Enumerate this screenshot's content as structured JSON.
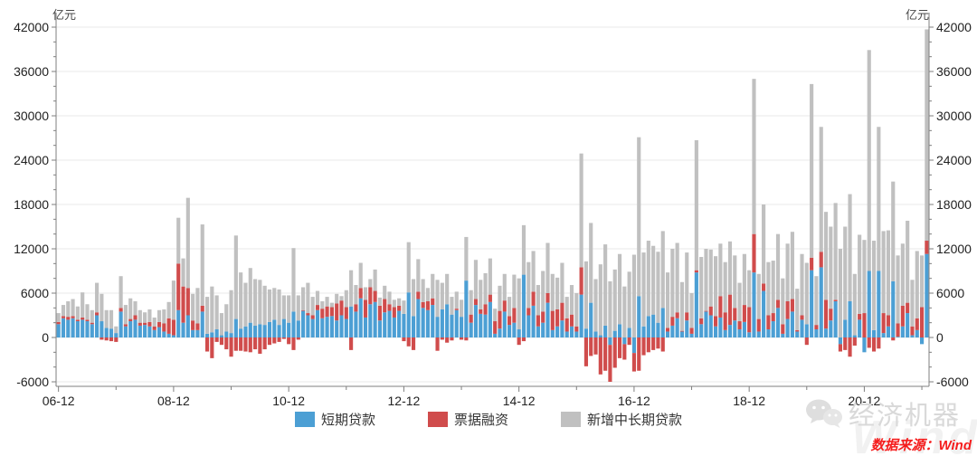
{
  "footer": {
    "source": "数据来源：Wind"
  },
  "watermark": {
    "wechat_account": "经济机器",
    "brand": "Wind"
  },
  "chart_data": {
    "type": "bar",
    "stacked": true,
    "title": "",
    "xlabel": "",
    "ylabel": "亿元",
    "x_start": "2006-12",
    "x_end": "2022-01",
    "frequency": "monthly",
    "x_tick_labels": [
      "06-12",
      "08-12",
      "10-12",
      "12-12",
      "14-12",
      "16-12",
      "18-12",
      "20-12"
    ],
    "x_major_tick_every_months": 24,
    "x_minor_tick_every_months": 12,
    "ylim": [
      -6000,
      42000
    ],
    "y_major_step": 6000,
    "y_minor_step": 2000,
    "grid": true,
    "legend_position": "bottom",
    "axis_color": "#7f7f7f",
    "grid_color": "#e9e9e9",
    "series": [
      {
        "name": "短期贷款",
        "color": "#4c9fd4",
        "values": [
          1800,
          2600,
          2400,
          2600,
          2200,
          2400,
          2200,
          1800,
          3000,
          2200,
          1300,
          1200,
          600,
          3500,
          1500,
          2200,
          2400,
          1600,
          1700,
          1500,
          1000,
          1400,
          800,
          500,
          300,
          3700,
          2000,
          3000,
          1000,
          1000,
          3500,
          500,
          700,
          1100,
          300,
          800,
          600,
          2500,
          1200,
          1500,
          2000,
          1600,
          1800,
          1700,
          2100,
          2400,
          1700,
          2500,
          2000,
          3500,
          2300,
          3600,
          3000,
          2500,
          3700,
          2600,
          2800,
          2900,
          2300,
          3000,
          2500,
          4200,
          3500,
          5300,
          2700,
          4500,
          4800,
          2300,
          3400,
          3600,
          2700,
          3600,
          3200,
          6100,
          2900,
          5200,
          4000,
          3700,
          4400,
          2800,
          3800,
          4500,
          3100,
          3700,
          2800,
          7700,
          2000,
          4400,
          3200,
          3100,
          4800,
          500,
          1200,
          3500,
          1700,
          2000,
          1100,
          8500,
          3000,
          4300,
          1500,
          2000,
          4700,
          1000,
          1500,
          2300,
          800,
          1500,
          800,
          5800,
          1200,
          4700,
          800,
          300,
          1600,
          -1000,
          900,
          1800,
          -900,
          1300,
          -2100,
          5600,
          1500,
          2900,
          3100,
          2000,
          4000,
          800,
          1600,
          2600,
          800,
          2300,
          500,
          8800,
          1800,
          3500,
          3000,
          1500,
          2700,
          1000,
          1700,
          2300,
          1100,
          2100,
          700,
          8800,
          800,
          6300,
          1100,
          2200,
          4000,
          500,
          2500,
          3500,
          800,
          2400,
          1800,
          9100,
          1100,
          9500,
          1200,
          2300,
          4900,
          -900,
          2400,
          4900,
          300,
          2400,
          -2000,
          9000,
          1000,
          9000,
          600,
          1500,
          7600,
          100,
          1500,
          3300,
          300,
          1000,
          -900,
          11300
        ]
      },
      {
        "name": "票据融资",
        "color": "#d04c4c",
        "values": [
          300,
          300,
          400,
          300,
          200,
          300,
          200,
          200,
          400,
          -300,
          -400,
          -500,
          -600,
          500,
          300,
          300,
          600,
          400,
          300,
          600,
          500,
          700,
          1100,
          2100,
          2100,
          6300,
          4900,
          3700,
          1300,
          900,
          800,
          -1900,
          -2800,
          -600,
          -1000,
          -1600,
          -2600,
          -1800,
          -1800,
          -1900,
          -2000,
          -1600,
          -2200,
          -1600,
          -1000,
          -800,
          -600,
          -200,
          -900,
          -1700,
          -300,
          100,
          300,
          500,
          700,
          1300,
          1400,
          1200,
          2300,
          2000,
          1600,
          -1700,
          1000,
          1400,
          2400,
          2300,
          1500,
          2000,
          1800,
          900,
          1400,
          700,
          -500,
          -1200,
          -1700,
          1000,
          800,
          1200,
          900,
          -1800,
          -300,
          -700,
          -400,
          200,
          -300,
          -400,
          1100,
          800,
          600,
          1400,
          1000,
          1700,
          2400,
          1500,
          1200,
          2000,
          -1000,
          -500,
          1000,
          1900,
          1500,
          1500,
          1300,
          2600,
          2300,
          2400,
          1800,
          1600,
          700,
          3700,
          -3900,
          -2500,
          -2300,
          -5000,
          -4500,
          -5000,
          -4100,
          -2800,
          -2100,
          -1000,
          -2500,
          -4500,
          -2400,
          -2000,
          -1700,
          -1500,
          -1900,
          500,
          1200,
          800,
          100,
          1100,
          800,
          300,
          800,
          100,
          1200,
          1400,
          2900,
          2400,
          4100,
          1700,
          1100,
          2300,
          3400,
          5200,
          1700,
          1000,
          1900,
          1100,
          1100,
          1300,
          2400,
          1700,
          200,
          600,
          -1000,
          1700,
          600,
          2100,
          3900,
          1600,
          200,
          -1000,
          -1700,
          -2600,
          -1100,
          800,
          3300,
          -1400,
          -1900,
          -1500,
          2700,
          1500,
          -400,
          1800,
          2800,
          1400,
          1200,
          1600,
          4100,
          1800
        ]
      },
      {
        "name": "新增中长期贷款",
        "color": "#c0c0c0",
        "values": [
          1200,
          1500,
          2100,
          2300,
          1800,
          3400,
          2100,
          1700,
          4000,
          3700,
          2400,
          2500,
          900,
          4300,
          2600,
          2800,
          1900,
          1700,
          1400,
          1700,
          1200,
          1600,
          1900,
          2200,
          5300,
          6200,
          3800,
          12200,
          3600,
          4800,
          11000,
          5000,
          6200,
          4600,
          3000,
          3700,
          5800,
          11300,
          7600,
          5900,
          7400,
          6300,
          6000,
          5300,
          4400,
          4300,
          4800,
          3200,
          3700,
          8600,
          3400,
          3100,
          4100,
          2500,
          1900,
          1000,
          1300,
          600,
          1300,
          600,
          2300,
          4900,
          2600,
          3400,
          1700,
          1100,
          2900,
          1100,
          1800,
          1700,
          1000,
          1000,
          1800,
          6800,
          5000,
          4400,
          3100,
          1800,
          3300,
          5000,
          3600,
          4100,
          2400,
          2300,
          2300,
          5900,
          3300,
          5300,
          4000,
          4200,
          4900,
          1700,
          3400,
          3600,
          2600,
          4500,
          6900,
          6700,
          6200,
          5500,
          4100,
          5500,
          6800,
          5000,
          4300,
          5400,
          2900,
          4000,
          4500,
          15400,
          9100,
          10800,
          7100,
          9600,
          11000,
          7600,
          8300,
          9500,
          6900,
          7600,
          11200,
          21500,
          10000,
          10200,
          9300,
          9600,
          10400,
          7500,
          9200,
          9400,
          6600,
          8100,
          4700,
          17600,
          8300,
          8400,
          7700,
          8100,
          7100,
          6800,
          7200,
          7100,
          5200,
          6900,
          5000,
          21000,
          6100,
          10700,
          7200,
          7100,
          8900,
          6200,
          7800,
          9100,
          5600,
          8300,
          8300,
          23500,
          6600,
          16900,
          11900,
          11100,
          13100,
          12000,
          12600,
          14500,
          8300,
          10700,
          9900,
          29900,
          12100,
          19500,
          11100,
          11500,
          13500,
          9200,
          8400,
          11100,
          6300,
          9100,
          7000,
          28600
        ]
      }
    ]
  }
}
